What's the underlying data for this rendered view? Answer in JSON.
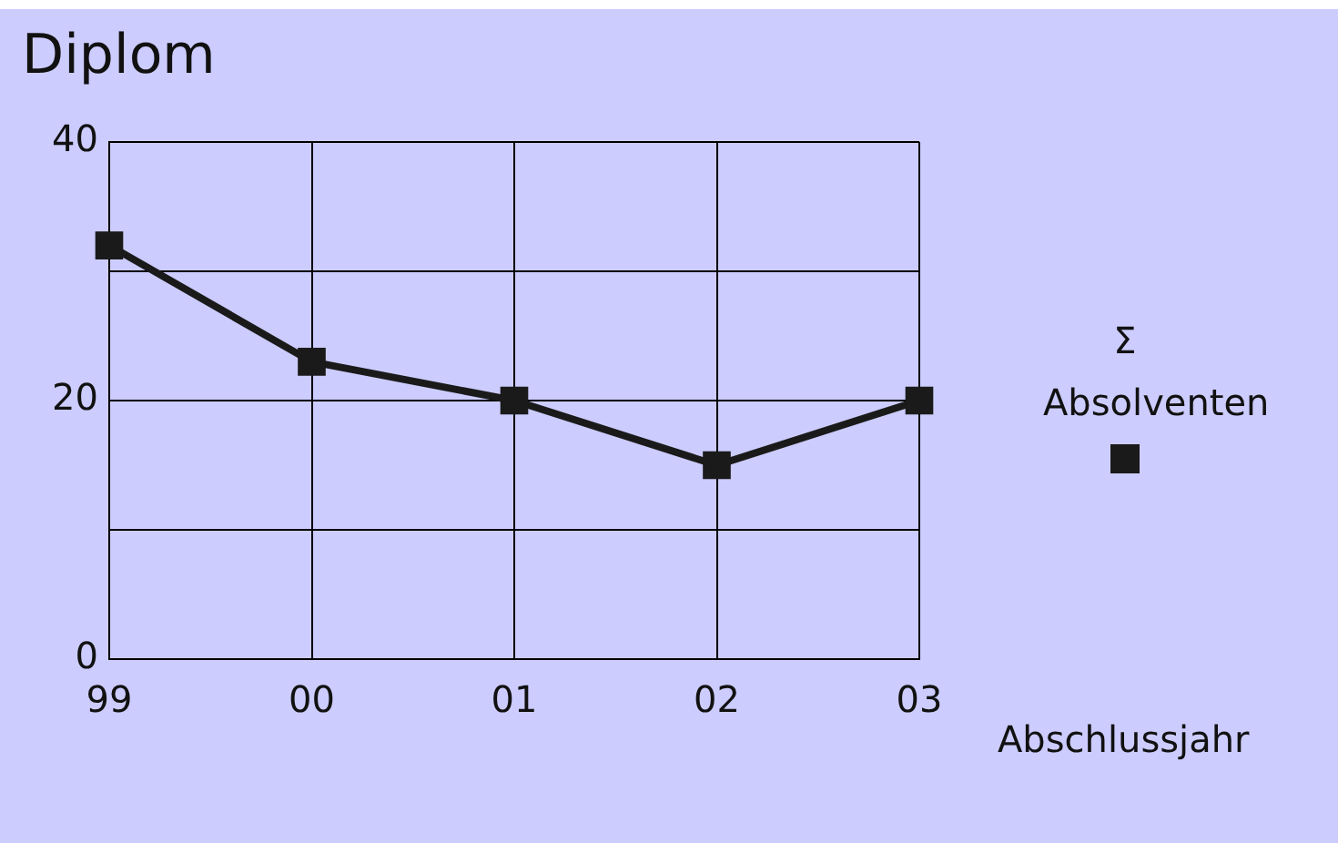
{
  "chart_data": {
    "type": "line",
    "title": "Diplom",
    "xlabel": "Abschlussjahr",
    "categories": [
      "99",
      "00",
      "01",
      "02",
      "03"
    ],
    "series": [
      {
        "name": "Σ Absolventen",
        "color": "#1a1a1a",
        "values": [
          32,
          23,
          20,
          15,
          20
        ]
      }
    ],
    "ylim": [
      0,
      40
    ],
    "yticks": [
      0,
      {
        "value": 10,
        "label": null
      },
      20,
      {
        "value": 30,
        "label": null
      },
      40
    ],
    "grid": true,
    "legend": "right",
    "marker": "square",
    "line_style": "solid"
  }
}
